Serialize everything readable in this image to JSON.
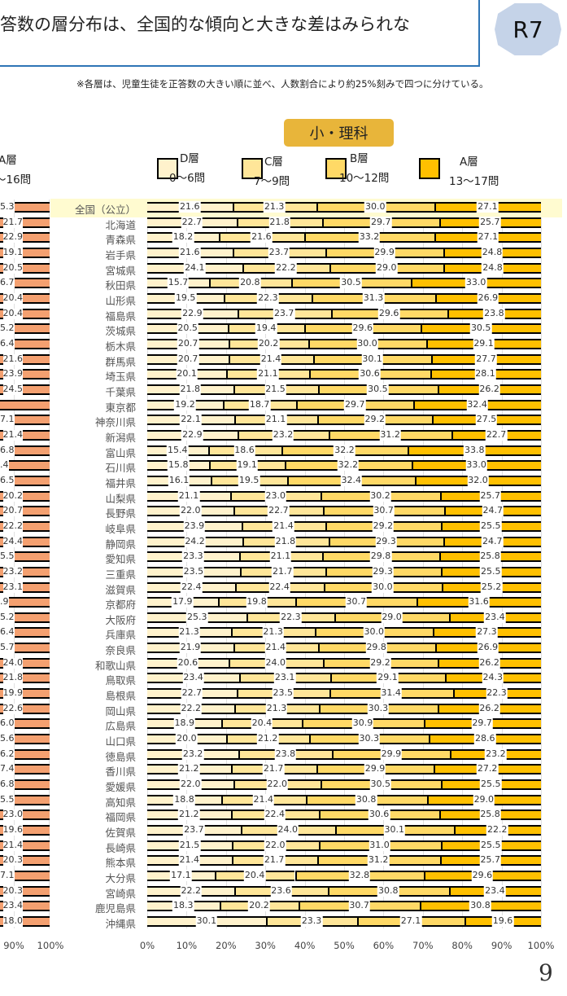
{
  "header": {
    "title": "答数の層分布は、全国的な傾向と大きな差はみられな",
    "badge": "R7"
  },
  "note": "※各層は、児童生徒を正答数の大きい順に並べ、人数割合により約25%刻みで四つに分けている。",
  "subject": "小・理科",
  "left_legend": {
    "label": "A層",
    "range": "〜16問"
  },
  "legend": [
    {
      "label": "D層",
      "range": "0〜6問",
      "color": "#fff2cc"
    },
    {
      "label": "C層",
      "range": "7〜9問",
      "color": "#ffe699"
    },
    {
      "label": "B層",
      "range": "10〜12問",
      "color": "#ffd966"
    },
    {
      "label": "A層",
      "range": "13〜17問",
      "color": "#ffc000"
    }
  ],
  "left_partial_color": "#f4a070",
  "left_partial_values": [
    "5.3",
    "21.7",
    "22.9",
    "19.1",
    "20.5",
    "6.7",
    "20.4",
    "20.4",
    "5.2",
    "6.4",
    "21.6",
    "23.9",
    "24.5",
    "",
    "7.1",
    "21.4",
    "6.8",
    ".4",
    "6.5",
    "20.2",
    "20.7",
    "22.2",
    "24.4",
    "5.5",
    "23.2",
    "23.1",
    ".9",
    "5.2",
    "6.4",
    "5.7",
    "24.0",
    "21.8",
    "19.9",
    "22.6",
    "6.0",
    "5.6",
    "6.2",
    "7.4",
    "6.8",
    "5.5",
    "23.0",
    "19.6",
    "21.4",
    "20.3",
    "7.1",
    "20.3",
    "23.4",
    "18.0"
  ],
  "left_ticks": [
    "90%",
    "100%"
  ],
  "chart_data": {
    "type": "bar",
    "orientation": "horizontal-stacked-100",
    "title": "小・理科",
    "series_names": [
      "D層",
      "C層",
      "B層",
      "A層"
    ],
    "xlim": [
      0,
      100
    ],
    "xticks": [
      "0%",
      "10%",
      "20%",
      "30%",
      "40%",
      "50%",
      "60%",
      "70%",
      "80%",
      "90%",
      "100%"
    ],
    "categories": [
      "全国（公立）",
      "北海道",
      "青森県",
      "岩手県",
      "宮城県",
      "秋田県",
      "山形県",
      "福島県",
      "茨城県",
      "栃木県",
      "群馬県",
      "埼玉県",
      "千葉県",
      "東京都",
      "神奈川県",
      "新潟県",
      "富山県",
      "石川県",
      "福井県",
      "山梨県",
      "長野県",
      "岐阜県",
      "静岡県",
      "愛知県",
      "三重県",
      "滋賀県",
      "京都府",
      "大阪府",
      "兵庫県",
      "奈良県",
      "和歌山県",
      "鳥取県",
      "島根県",
      "岡山県",
      "広島県",
      "山口県",
      "徳島県",
      "香川県",
      "愛媛県",
      "高知県",
      "福岡県",
      "佐賀県",
      "長崎県",
      "熊本県",
      "大分県",
      "宮崎県",
      "鹿児島県",
      "沖縄県"
    ],
    "values": [
      [
        21.6,
        21.3,
        30.0,
        27.1
      ],
      [
        22.7,
        21.8,
        29.7,
        25.7
      ],
      [
        18.2,
        21.6,
        33.2,
        27.1
      ],
      [
        21.6,
        23.7,
        29.9,
        24.8
      ],
      [
        24.1,
        22.2,
        29.0,
        24.8
      ],
      [
        15.7,
        20.8,
        30.5,
        33.0
      ],
      [
        19.5,
        22.3,
        31.3,
        26.9
      ],
      [
        22.9,
        23.7,
        29.6,
        23.8
      ],
      [
        20.5,
        19.4,
        29.6,
        30.5
      ],
      [
        20.7,
        20.2,
        30.0,
        29.1
      ],
      [
        20.7,
        21.4,
        30.1,
        27.7
      ],
      [
        20.1,
        21.1,
        30.6,
        28.1
      ],
      [
        21.8,
        21.5,
        30.5,
        26.2
      ],
      [
        19.2,
        18.7,
        29.7,
        32.4
      ],
      [
        22.1,
        21.1,
        29.2,
        27.5
      ],
      [
        22.9,
        23.2,
        31.2,
        22.7
      ],
      [
        15.4,
        18.6,
        32.2,
        33.8
      ],
      [
        15.8,
        19.1,
        32.2,
        33.0
      ],
      [
        16.1,
        19.5,
        32.4,
        32.0
      ],
      [
        21.1,
        23.0,
        30.2,
        25.7
      ],
      [
        22.0,
        22.7,
        30.7,
        24.7
      ],
      [
        23.9,
        21.4,
        29.2,
        25.5
      ],
      [
        24.2,
        21.8,
        29.3,
        24.7
      ],
      [
        23.3,
        21.1,
        29.8,
        25.8
      ],
      [
        23.5,
        21.7,
        29.3,
        25.5
      ],
      [
        22.4,
        22.4,
        30.0,
        25.2
      ],
      [
        17.9,
        19.8,
        30.7,
        31.6
      ],
      [
        25.3,
        22.3,
        29.0,
        23.4
      ],
      [
        21.3,
        21.3,
        30.0,
        27.3
      ],
      [
        21.9,
        21.4,
        29.8,
        26.9
      ],
      [
        20.6,
        24.0,
        29.2,
        26.2
      ],
      [
        23.4,
        23.1,
        29.1,
        24.3
      ],
      [
        22.7,
        23.5,
        31.4,
        22.3
      ],
      [
        22.2,
        21.3,
        30.3,
        26.2
      ],
      [
        18.9,
        20.4,
        30.9,
        29.7
      ],
      [
        20.0,
        21.2,
        30.3,
        28.6
      ],
      [
        23.2,
        23.8,
        29.9,
        23.2
      ],
      [
        21.2,
        21.7,
        29.9,
        27.2
      ],
      [
        22.0,
        22.0,
        30.5,
        25.5
      ],
      [
        18.8,
        21.4,
        30.8,
        29.0
      ],
      [
        21.2,
        22.4,
        30.6,
        25.8
      ],
      [
        23.7,
        24.0,
        30.1,
        22.2
      ],
      [
        21.5,
        22.0,
        31.0,
        25.5
      ],
      [
        21.4,
        21.7,
        31.2,
        25.7
      ],
      [
        17.1,
        20.4,
        32.8,
        29.6
      ],
      [
        22.2,
        23.6,
        30.8,
        23.4
      ],
      [
        18.3,
        20.2,
        30.7,
        30.8
      ],
      [
        30.1,
        23.3,
        27.1,
        19.6
      ]
    ]
  },
  "page_number": "9"
}
